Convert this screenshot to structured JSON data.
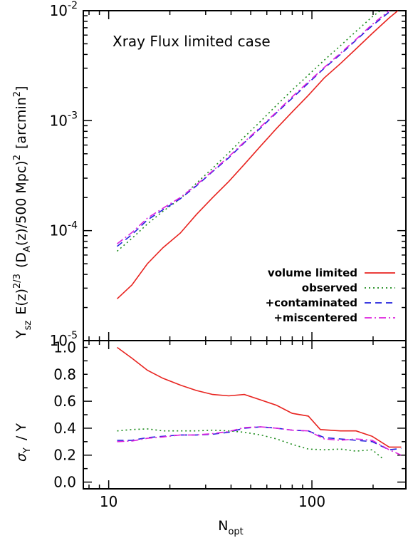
{
  "chart_data": [
    {
      "type": "line",
      "title": "Xray Flux limited case",
      "xlabel": "",
      "ylabel": "Y_sz E(z)^2/3 (D_A(z)/500 Mpc)^2 [arcmin^2]",
      "ylabel_parts": {
        "y_main": "Y",
        "y_sub": "sz",
        "e_main": "E(z)",
        "e_sup": "2/3",
        "d_open": "(D",
        "d_sub": "A",
        "d_rest": "(z)/500 Mpc)",
        "d_sup": "2",
        "unit_open": "[arcmin",
        "unit_sup": "2",
        "unit_close": "]"
      },
      "x_scale": "log",
      "y_scale": "log",
      "xlim": [
        7.5,
        290
      ],
      "ylim": [
        1e-05,
        0.01
      ],
      "y_ticks": [
        {
          "main": "10",
          "exp": "-5",
          "value": 1e-05
        },
        {
          "main": "10",
          "exp": "-4",
          "value": 0.0001
        },
        {
          "main": "10",
          "exp": "-3",
          "value": 0.001
        },
        {
          "main": "10",
          "exp": "-2",
          "value": 0.01
        }
      ],
      "legend_position": "bottom-right",
      "series": [
        {
          "name": "volume limited",
          "color": "#e8231f",
          "dash": "solid",
          "x": [
            11,
            13,
            15.5,
            18.5,
            22.5,
            27,
            32.5,
            39,
            46.5,
            56,
            67,
            80,
            96,
            115,
            138,
            165,
            198,
            240,
            265
          ],
          "y": [
            2.4e-05,
            3.2e-05,
            5e-05,
            7e-05,
            9.5e-05,
            0.00014,
            0.0002,
            0.00028,
            0.0004,
            0.00059,
            0.00085,
            0.0012,
            0.0017,
            0.00245,
            0.0033,
            0.0045,
            0.0062,
            0.0086,
            0.01
          ]
        },
        {
          "name": "observed",
          "color": "#1a8a1a",
          "dash": "dotted",
          "x": [
            11,
            13,
            15.5,
            18.5,
            22.5,
            27,
            32.5,
            39,
            46.5,
            56,
            67,
            80,
            96,
            115,
            138,
            165,
            198,
            225
          ],
          "y": [
            6.5e-05,
            8.5e-05,
            0.000115,
            0.00015,
            0.000195,
            0.00027,
            0.00037,
            0.00051,
            0.00071,
            0.00099,
            0.00138,
            0.0019,
            0.0026,
            0.00355,
            0.0048,
            0.0065,
            0.0088,
            0.0105
          ]
        },
        {
          "name": "+contaminated",
          "color": "#2222dd",
          "dash": "dashed",
          "x": [
            11,
            13,
            15.5,
            18.5,
            22.5,
            27,
            32.5,
            39,
            46.5,
            56,
            67,
            80,
            96,
            115,
            138,
            165,
            198,
            240
          ],
          "y": [
            7.2e-05,
            9.2e-05,
            0.000125,
            0.000155,
            0.000195,
            0.000255,
            0.000345,
            0.00046,
            0.00063,
            0.00086,
            0.00118,
            0.0016,
            0.0022,
            0.003,
            0.004,
            0.0054,
            0.0073,
            0.0097
          ]
        },
        {
          "name": "+miscentered",
          "color": "#dd22dd",
          "dash": "dashdot",
          "x": [
            11,
            13,
            15.5,
            18.5,
            22.5,
            27,
            32.5,
            39,
            46.5,
            56,
            67,
            80,
            96,
            115,
            138,
            165,
            198,
            240
          ],
          "y": [
            7.6e-05,
            9.6e-05,
            0.00013,
            0.00016,
            0.0002,
            0.00026,
            0.00035,
            0.00047,
            0.00064,
            0.00088,
            0.0012,
            0.00165,
            0.00225,
            0.00305,
            0.0041,
            0.0055,
            0.0075,
            0.01
          ]
        }
      ]
    },
    {
      "type": "line",
      "xlabel": "N_opt",
      "xlabel_parts": {
        "main": "N",
        "sub": "opt"
      },
      "ylabel": "σ_Y / Y",
      "ylabel_parts": {
        "sigma": "σ",
        "sigma_sub": "Y",
        "rest": "/ Y"
      },
      "x_scale": "log",
      "xlim": [
        7.5,
        290
      ],
      "ylim": [
        -0.05,
        1.05
      ],
      "x_ticks": [
        {
          "label": "10",
          "value": 10
        },
        {
          "label": "100",
          "value": 100
        }
      ],
      "y_ticks": [
        {
          "label": "0.0",
          "value": 0.0
        },
        {
          "label": "0.2",
          "value": 0.2
        },
        {
          "label": "0.4",
          "value": 0.4
        },
        {
          "label": "0.6",
          "value": 0.6
        },
        {
          "label": "0.8",
          "value": 0.8
        },
        {
          "label": "1.0",
          "value": 1.0
        }
      ],
      "series": [
        {
          "name": "volume limited",
          "color": "#e8231f",
          "dash": "solid",
          "x": [
            11,
            13,
            15.5,
            18.5,
            22.5,
            27,
            32.5,
            39,
            46.5,
            56,
            67,
            80,
            96,
            110,
            138,
            165,
            198,
            240,
            275
          ],
          "y": [
            1.0,
            0.92,
            0.83,
            0.77,
            0.72,
            0.68,
            0.65,
            0.64,
            0.65,
            0.61,
            0.57,
            0.51,
            0.49,
            0.39,
            0.38,
            0.38,
            0.34,
            0.26,
            0.26
          ]
        },
        {
          "name": "observed",
          "color": "#1a8a1a",
          "dash": "dotted",
          "x": [
            11,
            13,
            15.5,
            18.5,
            22.5,
            27,
            32.5,
            39,
            46.5,
            56,
            67,
            80,
            96,
            115,
            138,
            165,
            198,
            225
          ],
          "y": [
            0.38,
            0.39,
            0.395,
            0.38,
            0.38,
            0.38,
            0.385,
            0.38,
            0.37,
            0.35,
            0.32,
            0.28,
            0.245,
            0.24,
            0.245,
            0.23,
            0.24,
            0.17
          ]
        },
        {
          "name": "+contaminated",
          "color": "#2222dd",
          "dash": "dashed",
          "x": [
            11,
            13,
            15.5,
            18.5,
            22.5,
            27,
            32.5,
            39,
            46.5,
            56,
            67,
            80,
            96,
            115,
            138,
            165,
            198,
            240,
            275
          ],
          "y": [
            0.31,
            0.31,
            0.33,
            0.34,
            0.35,
            0.35,
            0.355,
            0.37,
            0.4,
            0.41,
            0.4,
            0.385,
            0.38,
            0.33,
            0.32,
            0.31,
            0.3,
            0.24,
            0.25
          ]
        },
        {
          "name": "+miscentered",
          "color": "#dd22dd",
          "dash": "dashdot",
          "x": [
            11,
            13,
            15.5,
            18.5,
            22.5,
            27,
            32.5,
            39,
            46.5,
            56,
            67,
            80,
            96,
            115,
            138,
            165,
            198,
            240,
            275
          ],
          "y": [
            0.3,
            0.305,
            0.325,
            0.335,
            0.35,
            0.35,
            0.36,
            0.375,
            0.405,
            0.41,
            0.4,
            0.385,
            0.38,
            0.32,
            0.31,
            0.32,
            0.31,
            0.24,
            0.2
          ]
        }
      ]
    }
  ]
}
